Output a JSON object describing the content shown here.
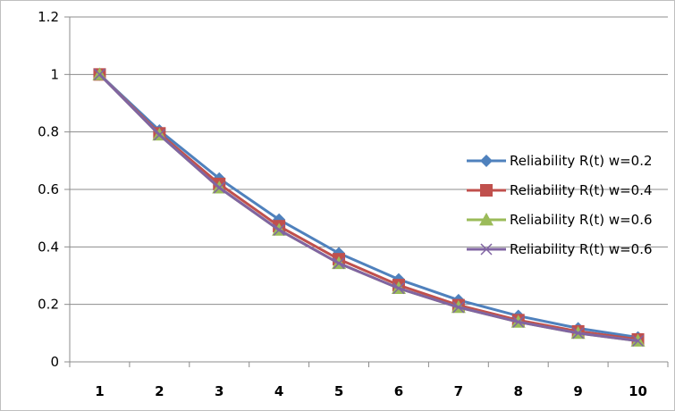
{
  "chart_data": {
    "type": "line",
    "title": "",
    "xlabel": "",
    "ylabel": "",
    "categories": [
      "1",
      "2",
      "3",
      "4",
      "5",
      "6",
      "7",
      "8",
      "9",
      "10"
    ],
    "ylim": [
      0,
      1.2
    ],
    "yticks": [
      "0",
      "0.2",
      "0.4",
      "0.6",
      "0.8",
      "1",
      "1.2"
    ],
    "grid": "horizontal",
    "legend_position": "right",
    "series": [
      {
        "name": "Reliability R(t) w=0.2",
        "color": "#4F81BD",
        "marker": "diamond",
        "values": [
          1.0,
          0.805,
          0.638,
          0.495,
          0.378,
          0.287,
          0.215,
          0.16,
          0.117,
          0.085
        ]
      },
      {
        "name": "Reliability R(t) w=0.4",
        "color": "#C0504D",
        "marker": "square",
        "values": [
          1.0,
          0.795,
          0.619,
          0.472,
          0.357,
          0.267,
          0.197,
          0.145,
          0.106,
          0.078
        ]
      },
      {
        "name": "Reliability R(t) w=0.6",
        "color": "#9BBB59",
        "marker": "triangle",
        "values": [
          1.0,
          0.79,
          0.606,
          0.459,
          0.343,
          0.256,
          0.19,
          0.139,
          0.1,
          0.073
        ]
      },
      {
        "name": "Reliability R(t) w=0.6",
        "color": "#8064A2",
        "marker": "x",
        "values": [
          1.0,
          0.79,
          0.606,
          0.459,
          0.343,
          0.256,
          0.19,
          0.139,
          0.1,
          0.073
        ]
      }
    ]
  }
}
